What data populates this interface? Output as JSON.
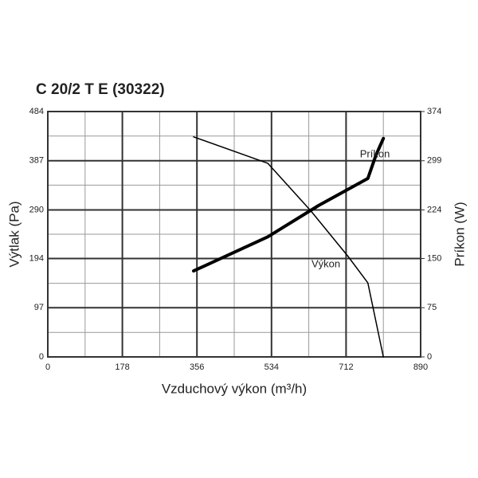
{
  "chart_data": {
    "type": "line",
    "title": "C 20/2 T E (30322)",
    "x_label": "Vzduchový výkon (m³/h)",
    "y_label": "Výtlak (Pa)",
    "y2_label": "Príkon (W)",
    "xlim": [
      0,
      890
    ],
    "xticks": [
      0,
      178,
      356,
      534,
      712,
      890
    ],
    "ylim": [
      0,
      484
    ],
    "yticks": [
      0,
      97,
      194,
      290,
      387,
      484
    ],
    "y2lim": [
      0,
      374
    ],
    "y2ticks": [
      0,
      75,
      150,
      224,
      299,
      374
    ],
    "grid": true,
    "series": [
      {
        "name": "Výkon",
        "color": "#000000",
        "x": [
          348,
          525,
          628,
          717,
          764,
          801
        ],
        "values": [
          434,
          382,
          288,
          198,
          146,
          0
        ]
      },
      {
        "name": "Príkon",
        "color": "#000000",
        "axis": "y2",
        "x": [
          348,
          525,
          647,
          764,
          783,
          801
        ],
        "values": [
          131,
          183,
          231,
          272,
          307,
          333
        ]
      }
    ]
  }
}
